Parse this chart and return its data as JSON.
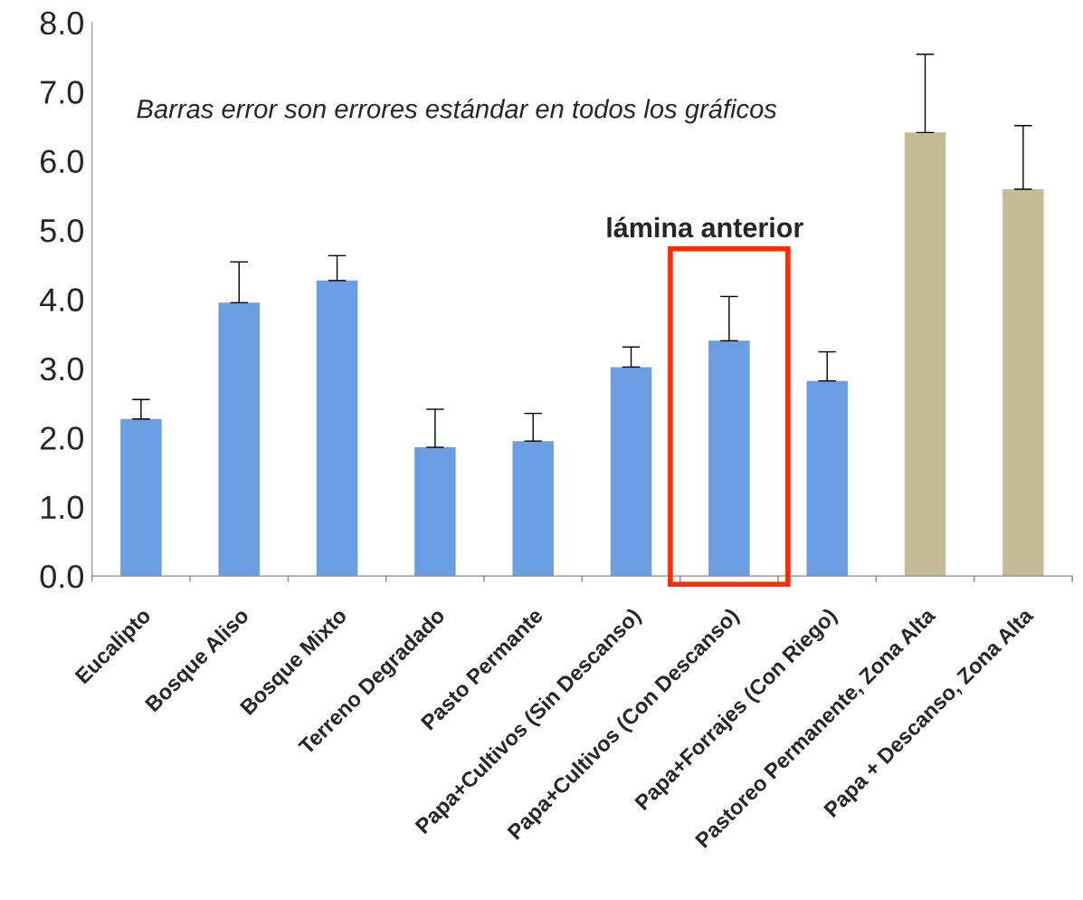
{
  "chart_data": {
    "type": "bar",
    "categories": [
      "Eucalipto",
      "Bosque Aliso",
      "Bosque Mixto",
      "Terreno Degradado",
      "Pasto Permante",
      "Papa+Cultivos (Sin Descanso)",
      "Papa+Cultivos (Con Descanso)",
      "Papa+Forrajes (Con Riego)",
      "Pastoreo Permanente, Zona Alta",
      "Papa + Descanso, Zona Alta"
    ],
    "values": [
      2.27,
      3.95,
      4.27,
      1.86,
      1.95,
      3.02,
      3.4,
      2.82,
      6.41,
      5.59
    ],
    "errors": [
      [
        2.27,
        2.55
      ],
      [
        3.95,
        4.54
      ],
      [
        4.27,
        4.63
      ],
      [
        1.86,
        2.41
      ],
      [
        1.95,
        2.35
      ],
      [
        3.02,
        3.31
      ],
      [
        3.4,
        4.04
      ],
      [
        2.82,
        3.24
      ],
      [
        6.41,
        7.54
      ],
      [
        5.59,
        6.51
      ]
    ],
    "colors": [
      "#6b9de3",
      "#6b9de3",
      "#6b9de3",
      "#6b9de3",
      "#6b9de3",
      "#6b9de3",
      "#6b9de3",
      "#6b9de3",
      "#c4bc96",
      "#c4bc96"
    ],
    "ylim": [
      0,
      8
    ],
    "yticks": [
      {
        "value": 0,
        "label": "0.0"
      },
      {
        "value": 1,
        "label": "1.0"
      },
      {
        "value": 2,
        "label": "2.0"
      },
      {
        "value": 3,
        "label": "3.0"
      },
      {
        "value": 4,
        "label": "4.0"
      },
      {
        "value": 5,
        "label": "5.0"
      },
      {
        "value": 6,
        "label": "6.0"
      },
      {
        "value": 7,
        "label": "7.0"
      },
      {
        "value": 8,
        "label": "8.0"
      }
    ],
    "grid": false,
    "annotations": [
      "Barras error son errores estándar en todos los gráficos",
      "lámina anterior"
    ]
  }
}
